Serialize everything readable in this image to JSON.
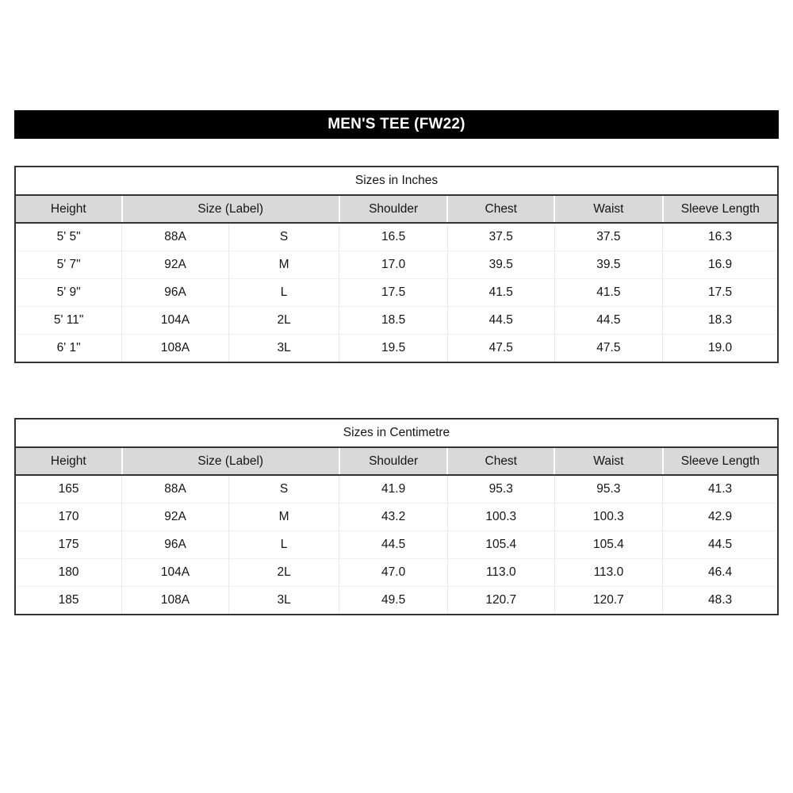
{
  "title": "MEN'S TEE (FW22)",
  "colors": {
    "title_bg": "#000000",
    "title_text": "#ffffff",
    "header_bg": "#d9d9d9",
    "outer_border": "#333333",
    "grid_line": "#e9e9e9"
  },
  "columns": [
    "Height",
    "Size (Label)",
    "Shoulder",
    "Chest",
    "Waist",
    "Sleeve Length"
  ],
  "tables": [
    {
      "caption": "Sizes in Inches",
      "rows": [
        [
          "5' 5\"",
          "88A",
          "S",
          "16.5",
          "37.5",
          "37.5",
          "16.3"
        ],
        [
          "5' 7\"",
          "92A",
          "M",
          "17.0",
          "39.5",
          "39.5",
          "16.9"
        ],
        [
          "5' 9\"",
          "96A",
          "L",
          "17.5",
          "41.5",
          "41.5",
          "17.5"
        ],
        [
          "5' 11\"",
          "104A",
          "2L",
          "18.5",
          "44.5",
          "44.5",
          "18.3"
        ],
        [
          "6' 1\"",
          "108A",
          "3L",
          "19.5",
          "47.5",
          "47.5",
          "19.0"
        ]
      ]
    },
    {
      "caption": "Sizes in Centimetre",
      "rows": [
        [
          "165",
          "88A",
          "S",
          "41.9",
          "95.3",
          "95.3",
          "41.3"
        ],
        [
          "170",
          "92A",
          "M",
          "43.2",
          "100.3",
          "100.3",
          "42.9"
        ],
        [
          "175",
          "96A",
          "L",
          "44.5",
          "105.4",
          "105.4",
          "44.5"
        ],
        [
          "180",
          "104A",
          "2L",
          "47.0",
          "113.0",
          "113.0",
          "46.4"
        ],
        [
          "185",
          "108A",
          "3L",
          "49.5",
          "120.7",
          "120.7",
          "48.3"
        ]
      ]
    }
  ]
}
